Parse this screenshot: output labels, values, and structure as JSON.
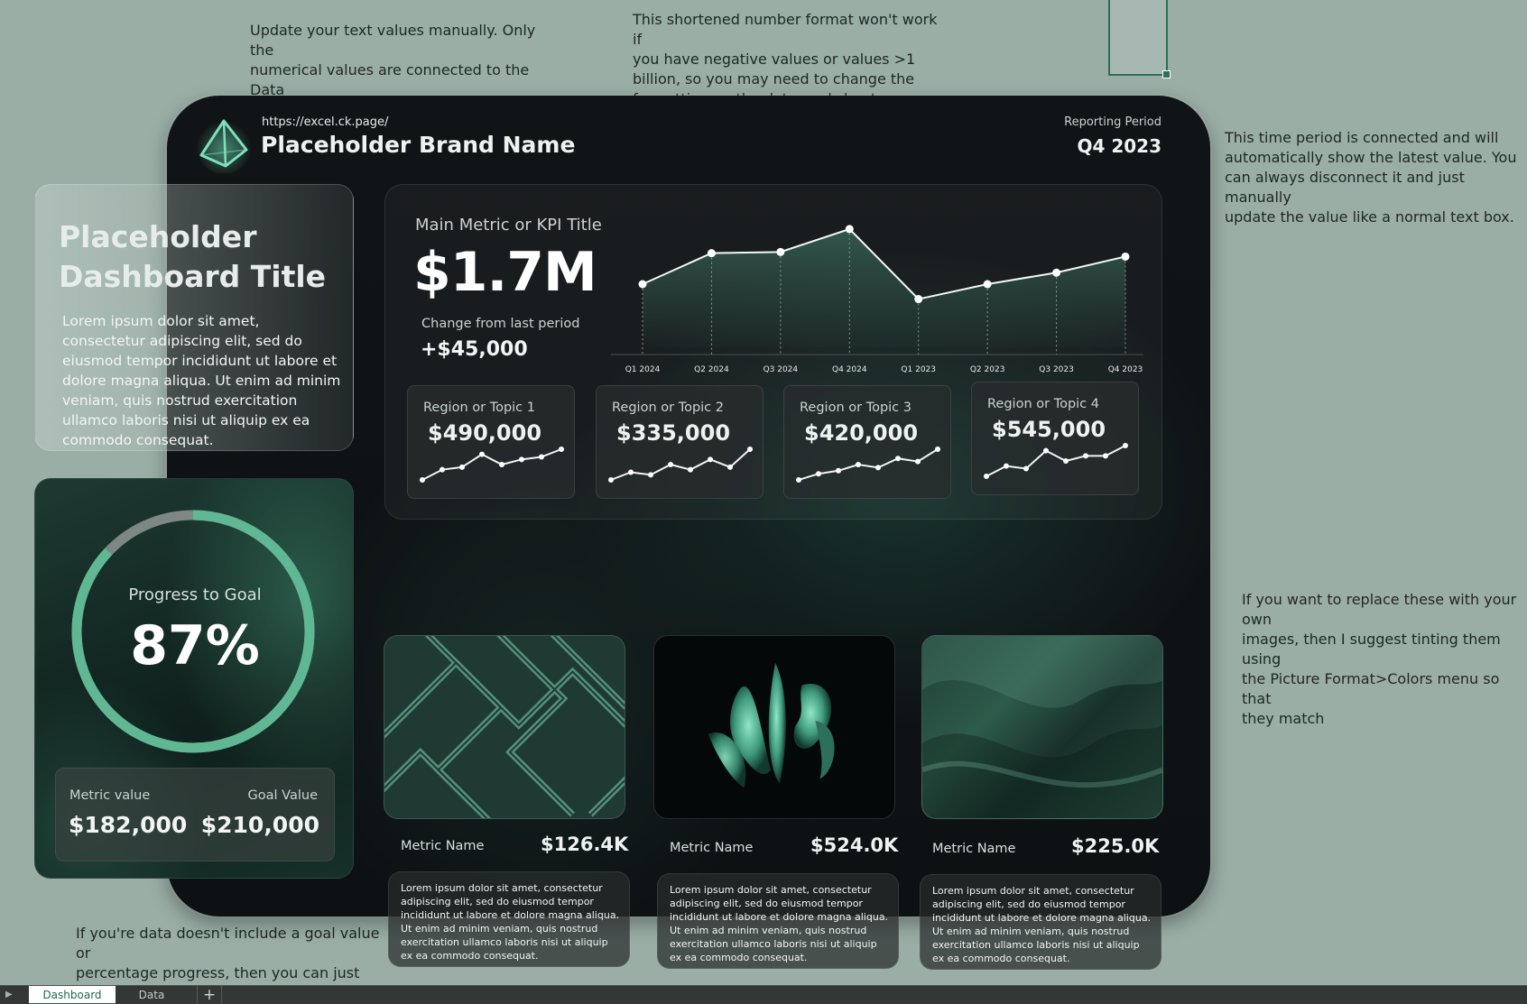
{
  "notes": {
    "text_values": "Update your text values manually. Only the\nnumerical values are connected to the Data\nworksheet.",
    "number_format": "This shortened number format won't work if\nyou have negative values or values >1\nbillion, so you may need to change the\nformatting on the data worksheet.",
    "time_period": "This time period is connected and will\nautomatically show the latest value. You\ncan always disconnect it and just manually\nupdate the value like a normal text box.",
    "images": "If you want to replace these with your own\nimages, then I suggest tinting them using\nthe Picture Format>Colors menu so that\nthey match",
    "goal": "If you're data doesn't include a goal value or\npercentage progress, then you can just\ndelete this section. The dashboard should"
  },
  "header": {
    "url": "https://excel.ck.page/",
    "brand": "Placeholder Brand Name",
    "reporting_label": "Reporting Period",
    "reporting_value": "Q4 2023",
    "logo_icon": "pyramid-icon"
  },
  "title_card": {
    "title": "Placeholder Dashboard Title",
    "description": "Lorem ipsum dolor sit amet, consectetur adipiscing elit, sed do eiusmod tempor incididunt ut labore et dolore magna aliqua. Ut enim ad minim veniam, quis nostrud exercitation ullamco laboris nisi ut aliquip ex ea commodo consequat."
  },
  "progress": {
    "label": "Progress to Goal",
    "value": "87%",
    "fraction": 0.87,
    "metric_label": "Metric value",
    "metric_value": "$182,000",
    "goal_label": "Goal Value",
    "goal_value": "$210,000"
  },
  "kpi": {
    "title": "Main Metric or KPI Title",
    "value": "$1.7M",
    "change_label": "Change from last period",
    "change_value": "+$45,000"
  },
  "chart_data": {
    "type": "line",
    "categories": [
      "Q1 2024",
      "Q2 2024",
      "Q3 2024",
      "Q4 2024",
      "Q1 2023",
      "Q2 2023",
      "Q3 2023",
      "Q4 2023"
    ],
    "values": [
      1.1,
      1.64,
      1.66,
      2.06,
      0.84,
      1.1,
      1.3,
      1.58
    ],
    "title": "",
    "xlabel": "",
    "ylabel": "",
    "ylim": [
      0,
      2.2
    ],
    "grid": false
  },
  "regions": [
    {
      "label": "Region or Topic 1",
      "value": "$490,000",
      "spark": [
        1,
        3,
        3.5,
        6,
        4,
        5,
        5.5,
        7
      ]
    },
    {
      "label": "Region or Topic 2",
      "value": "$335,000",
      "spark": [
        1,
        2.5,
        2,
        4,
        3,
        5,
        3.5,
        7
      ]
    },
    {
      "label": "Region or Topic 3",
      "value": "$420,000",
      "spark": [
        1,
        2,
        2.5,
        3.5,
        3,
        4.5,
        4,
        6
      ]
    },
    {
      "label": "Region or Topic 4",
      "value": "$545,000",
      "spark": [
        2,
        4,
        3.5,
        7,
        5,
        6,
        6,
        8
      ]
    }
  ],
  "metrics": [
    {
      "name": "Metric Name",
      "value": "$126.4K",
      "description": "Lorem ipsum dolor sit amet, consectetur adipiscing elit, sed do eiusmod tempor incididunt ut labore et dolore magna aliqua. Ut enim ad minim veniam, quis nostrud exercitation ullamco laboris nisi ut aliquip ex ea commodo consequat."
    },
    {
      "name": "Metric Name",
      "value": "$524.0K",
      "description": "Lorem ipsum dolor sit amet, consectetur adipiscing elit, sed do eiusmod tempor incididunt ut labore et dolore magna aliqua. Ut enim ad minim veniam, quis nostrud exercitation ullamco laboris nisi ut aliquip ex ea commodo consequat."
    },
    {
      "name": "Metric Name",
      "value": "$225.0K",
      "description": "Lorem ipsum dolor sit amet, consectetur adipiscing elit, sed do eiusmod tempor incididunt ut labore et dolore magna aliqua. Ut enim ad minim veniam, quis nostrud exercitation ullamco laboris nisi ut aliquip ex ea commodo consequat."
    }
  ],
  "tabs": {
    "sheet1": "Dashboard",
    "sheet2": "Data",
    "add": "+"
  },
  "colors": {
    "accent": "#5fc4a0",
    "accent_dim": "#3e8c72",
    "background": "#9aaea6",
    "dashboard_bg": "#111416"
  }
}
